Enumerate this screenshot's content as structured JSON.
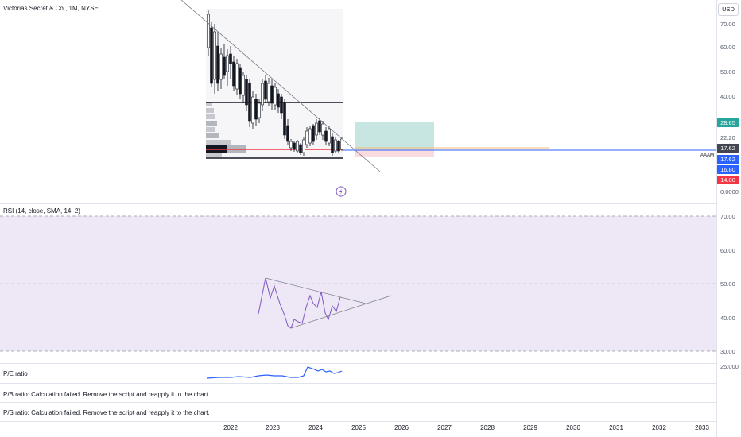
{
  "symbol_legend": "Victorias Secret & Co., 1M, NYSE",
  "currency_button": "USD",
  "price_axis": {
    "ticks": [
      "70.00",
      "60.00",
      "50.00",
      "40.00",
      "22.20",
      "0.0000"
    ],
    "badges": [
      {
        "label": "28.65",
        "color": "#26a69a"
      },
      {
        "label": "17.62",
        "color": "#434651"
      },
      {
        "label": "17.62",
        "color": "#2962ff"
      },
      {
        "label": "16.80",
        "color": "#2962ff"
      },
      {
        "label": "14.80",
        "color": "#f23645"
      }
    ],
    "overlay_label": "AAAM"
  },
  "rsi_pane": {
    "legend": "RSI (14, close, SMA, 14, 2)",
    "ticks": [
      "70.00",
      "60.00",
      "50.00",
      "40.00",
      "30.00"
    ]
  },
  "pe_pane": {
    "legend": "P/E ratio",
    "tick": "25.000"
  },
  "pb_pane": {
    "message": "P/B ratio: Calculation failed. Remove the script and reapply it to the chart."
  },
  "ps_pane": {
    "message": "P/S ratio: Calculation failed. Remove the script and reapply it to the chart."
  },
  "time_axis": {
    "labels": [
      "2022",
      "2023",
      "2024",
      "2025",
      "2026",
      "2027",
      "2028",
      "2029",
      "2030",
      "2031",
      "2032",
      "2033"
    ]
  },
  "colors": {
    "rsi_band": "#ede7f6",
    "rsi_line": "#7e57c2",
    "pe_line": "#2962ff",
    "up_candle": "#ffffff",
    "down_candle": "#131722",
    "trendline": "#787b86",
    "target_zone": "#c8e6e1",
    "stop_zone": "#fadbde",
    "support_line": "#f23645"
  }
}
